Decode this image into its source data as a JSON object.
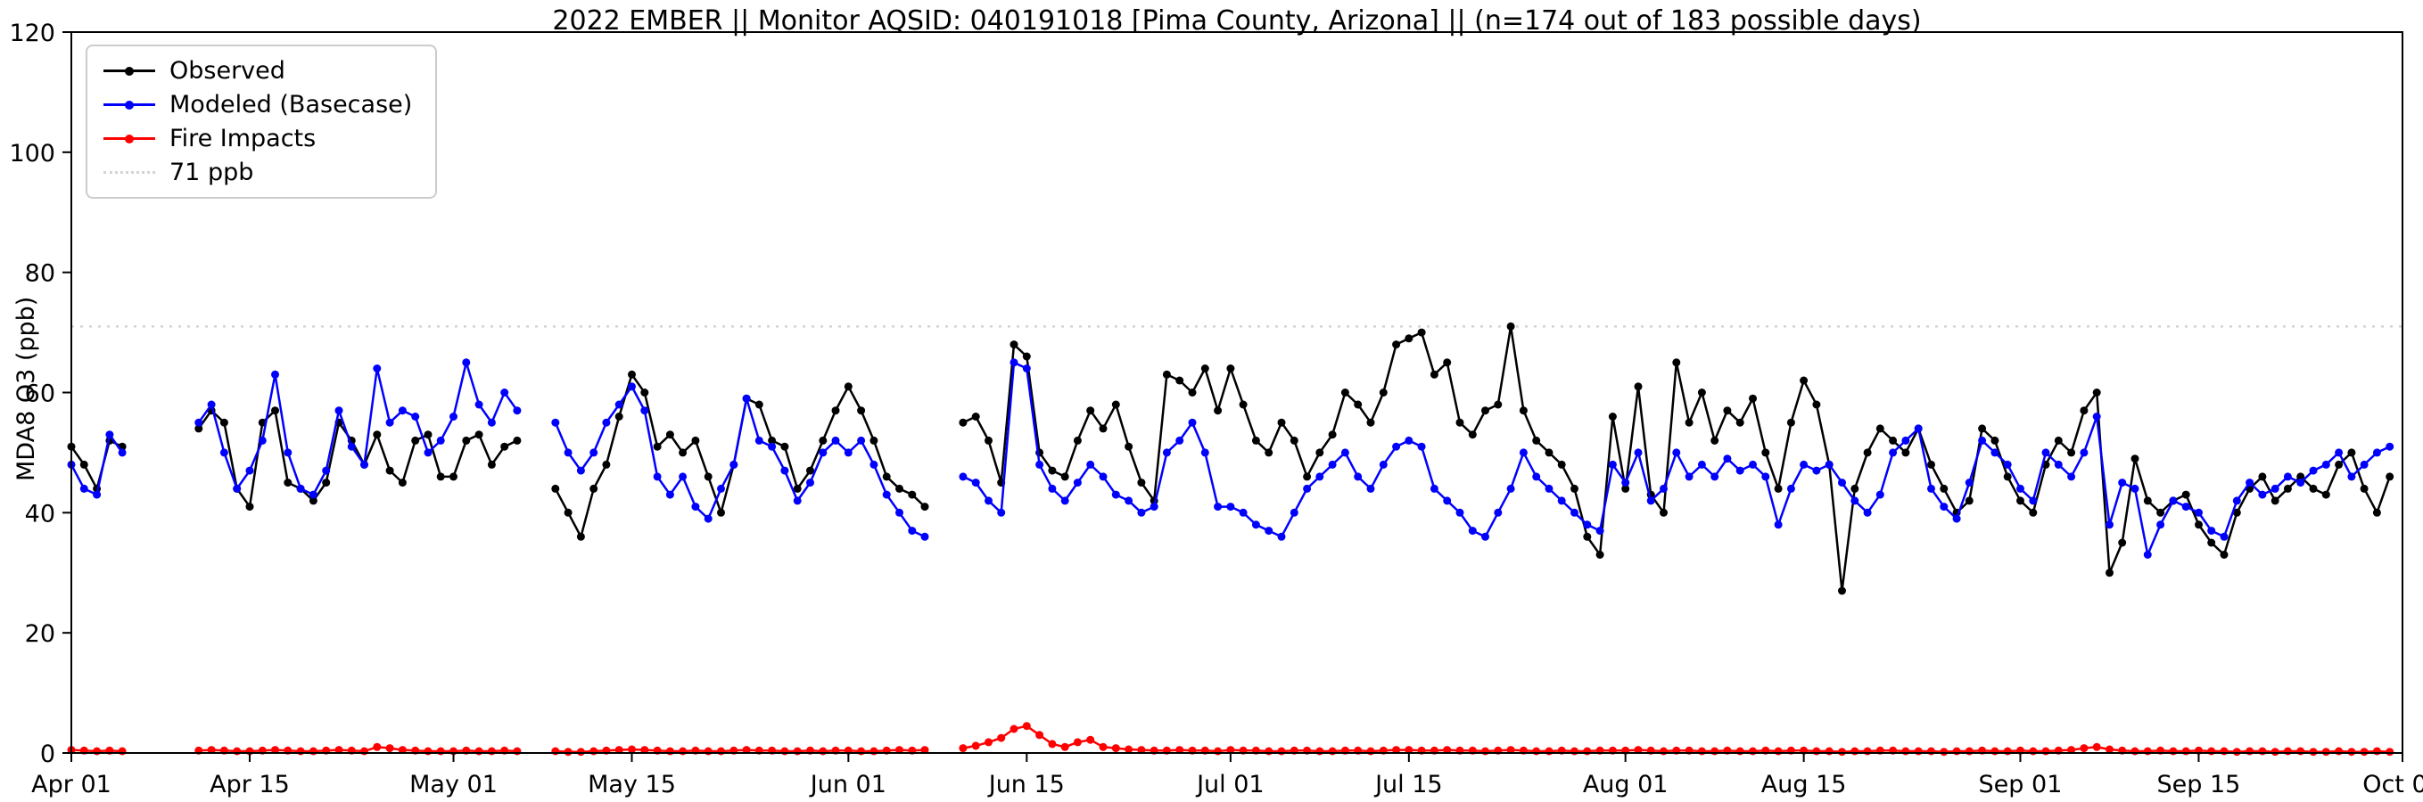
{
  "figure": {
    "title": "2022 EMBER || Monitor AQSID: 040191018 [Pima County, Arizona] || (n=174 out of 183 possible days)",
    "ylabel": "MDA8 O3 (ppb)"
  },
  "chart_data": {
    "type": "line",
    "title": "2022 EMBER || Monitor AQSID: 040191018 [Pima County, Arizona] || (n=174 out of 183 possible days)",
    "xlabel": "",
    "ylabel": "MDA8 O3 (ppb)",
    "ylim": [
      0,
      120
    ],
    "yticks": [
      0,
      20,
      40,
      60,
      80,
      100,
      120
    ],
    "xlim": [
      0,
      183
    ],
    "x_unit": "days since Apr 01 2022",
    "xticks": [
      {
        "day": 0,
        "label": "Apr 01"
      },
      {
        "day": 14,
        "label": "Apr 15"
      },
      {
        "day": 30,
        "label": "May 01"
      },
      {
        "day": 44,
        "label": "May 15"
      },
      {
        "day": 61,
        "label": "Jun 01"
      },
      {
        "day": 75,
        "label": "Jun 15"
      },
      {
        "day": 91,
        "label": "Jul 01"
      },
      {
        "day": 105,
        "label": "Jul 15"
      },
      {
        "day": 122,
        "label": "Aug 01"
      },
      {
        "day": 136,
        "label": "Aug 15"
      },
      {
        "day": 153,
        "label": "Sep 01"
      },
      {
        "day": 167,
        "label": "Sep 15"
      },
      {
        "day": 183,
        "label": "Oct 01"
      }
    ],
    "threshold": {
      "value": 71,
      "label": "71 ppb",
      "color": "#d3d3d3",
      "style": "dotted"
    },
    "grid": false,
    "legend_position": "upper-left",
    "n_days_observed": 174,
    "n_days_possible": 183,
    "series": [
      {
        "name": "Observed",
        "color": "#000000",
        "marker": "circle",
        "values": [
          51,
          48,
          44,
          52,
          51,
          null,
          null,
          null,
          null,
          null,
          54,
          57,
          55,
          44,
          41,
          55,
          57,
          45,
          44,
          42,
          45,
          55,
          52,
          48,
          53,
          47,
          45,
          52,
          53,
          46,
          46,
          52,
          53,
          48,
          51,
          52,
          null,
          null,
          44,
          40,
          36,
          44,
          48,
          56,
          63,
          60,
          51,
          53,
          50,
          52,
          46,
          40,
          48,
          59,
          58,
          52,
          51,
          44,
          47,
          52,
          57,
          61,
          57,
          52,
          46,
          44,
          43,
          41,
          null,
          null,
          55,
          56,
          52,
          45,
          68,
          66,
          50,
          47,
          46,
          52,
          57,
          54,
          58,
          51,
          45,
          42,
          63,
          62,
          60,
          64,
          57,
          64,
          58,
          52,
          50,
          55,
          52,
          46,
          50,
          53,
          60,
          58,
          55,
          60,
          68,
          69,
          70,
          63,
          65,
          55,
          53,
          57,
          58,
          71,
          57,
          52,
          50,
          48,
          44,
          36,
          33,
          56,
          44,
          61,
          43,
          40,
          65,
          55,
          60,
          52,
          57,
          55,
          59,
          50,
          44,
          55,
          62,
          58,
          48,
          27,
          44,
          50,
          54,
          52,
          50,
          54,
          48,
          44,
          40,
          42,
          54,
          52,
          46,
          42,
          40,
          48,
          52,
          50,
          57,
          60,
          30,
          35,
          49,
          42,
          40,
          42,
          43,
          38,
          35,
          33,
          40,
          44,
          46,
          42,
          44,
          46,
          44,
          43,
          48,
          50,
          44,
          40,
          46
        ]
      },
      {
        "name": "Modeled (Basecase)",
        "color": "#0000ff",
        "marker": "circle",
        "values": [
          48,
          44,
          43,
          53,
          50,
          null,
          null,
          null,
          null,
          null,
          55,
          58,
          50,
          44,
          47,
          52,
          63,
          50,
          44,
          43,
          47,
          57,
          51,
          48,
          64,
          55,
          57,
          56,
          50,
          52,
          56,
          65,
          58,
          55,
          60,
          57,
          null,
          null,
          55,
          50,
          47,
          50,
          55,
          58,
          61,
          57,
          46,
          43,
          46,
          41,
          39,
          44,
          48,
          59,
          52,
          51,
          47,
          42,
          45,
          50,
          52,
          50,
          52,
          48,
          43,
          40,
          37,
          36,
          null,
          null,
          46,
          45,
          42,
          40,
          65,
          64,
          48,
          44,
          42,
          45,
          48,
          46,
          43,
          42,
          40,
          41,
          50,
          52,
          55,
          50,
          41,
          41,
          40,
          38,
          37,
          36,
          40,
          44,
          46,
          48,
          50,
          46,
          44,
          48,
          51,
          52,
          51,
          44,
          42,
          40,
          37,
          36,
          40,
          44,
          50,
          46,
          44,
          42,
          40,
          38,
          37,
          48,
          45,
          50,
          42,
          44,
          50,
          46,
          48,
          46,
          49,
          47,
          48,
          46,
          38,
          44,
          48,
          47,
          48,
          45,
          42,
          40,
          43,
          50,
          52,
          54,
          44,
          41,
          39,
          45,
          52,
          50,
          48,
          44,
          42,
          50,
          48,
          46,
          50,
          56,
          38,
          45,
          44,
          33,
          38,
          42,
          41,
          40,
          37,
          36,
          42,
          45,
          43,
          44,
          46,
          45,
          47,
          48,
          50,
          46,
          48,
          50,
          51
        ]
      },
      {
        "name": "Fire Impacts",
        "color": "#ff0000",
        "marker": "circle",
        "values": [
          0.5,
          0.4,
          0.3,
          0.4,
          0.3,
          null,
          null,
          null,
          null,
          null,
          0.4,
          0.5,
          0.4,
          0.3,
          0.3,
          0.4,
          0.5,
          0.4,
          0.3,
          0.3,
          0.4,
          0.5,
          0.4,
          0.3,
          1.0,
          0.8,
          0.5,
          0.4,
          0.3,
          0.3,
          0.3,
          0.4,
          0.3,
          0.3,
          0.4,
          0.3,
          null,
          null,
          0.3,
          0.2,
          0.2,
          0.3,
          0.4,
          0.5,
          0.6,
          0.5,
          0.4,
          0.3,
          0.3,
          0.4,
          0.3,
          0.3,
          0.4,
          0.5,
          0.4,
          0.4,
          0.3,
          0.3,
          0.4,
          0.3,
          0.4,
          0.4,
          0.3,
          0.3,
          0.4,
          0.5,
          0.4,
          0.5,
          null,
          null,
          0.8,
          1.2,
          1.8,
          2.5,
          4.0,
          4.5,
          3.0,
          1.5,
          1.0,
          1.8,
          2.2,
          1.0,
          0.8,
          0.6,
          0.5,
          0.4,
          0.4,
          0.5,
          0.4,
          0.4,
          0.3,
          0.5,
          0.4,
          0.4,
          0.3,
          0.3,
          0.4,
          0.4,
          0.3,
          0.3,
          0.4,
          0.4,
          0.3,
          0.4,
          0.5,
          0.5,
          0.4,
          0.4,
          0.5,
          0.4,
          0.4,
          0.3,
          0.4,
          0.5,
          0.4,
          0.3,
          0.3,
          0.4,
          0.3,
          0.3,
          0.4,
          0.4,
          0.4,
          0.5,
          0.4,
          0.3,
          0.4,
          0.4,
          0.3,
          0.3,
          0.4,
          0.3,
          0.3,
          0.4,
          0.3,
          0.4,
          0.4,
          0.3,
          0.3,
          0.2,
          0.3,
          0.3,
          0.4,
          0.4,
          0.3,
          0.3,
          0.3,
          0.2,
          0.3,
          0.3,
          0.4,
          0.3,
          0.3,
          0.4,
          0.3,
          0.3,
          0.4,
          0.5,
          0.8,
          1.0,
          0.6,
          0.4,
          0.3,
          0.3,
          0.4,
          0.3,
          0.3,
          0.4,
          0.3,
          0.3,
          0.2,
          0.3,
          0.3,
          0.2,
          0.3,
          0.3,
          0.2,
          0.2,
          0.3,
          0.2,
          0.2,
          0.3,
          0.2
        ]
      }
    ]
  }
}
